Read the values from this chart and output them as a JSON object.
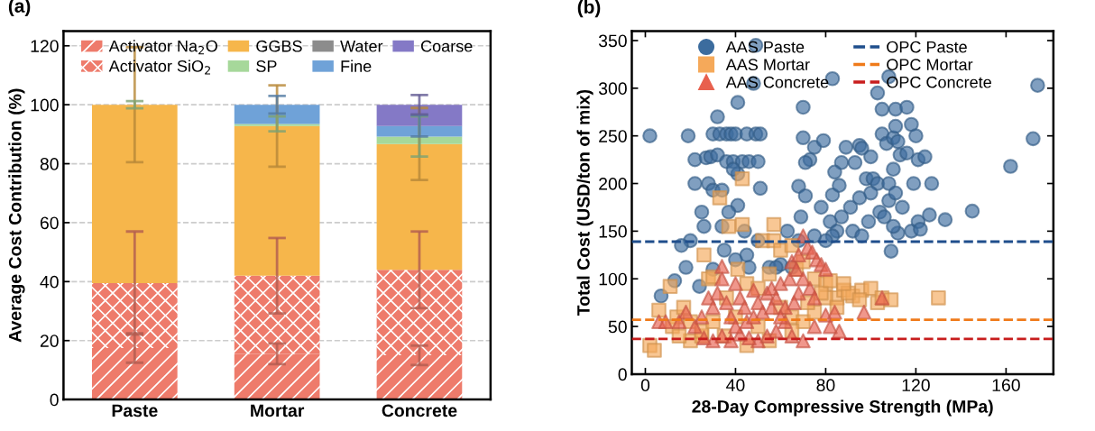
{
  "chart_data": [
    {
      "type": "bar",
      "title": "(a)",
      "ylabel": "Average Cost Contribution (%)",
      "categories": [
        "Paste",
        "Mortar",
        "Concrete"
      ],
      "stacked": true,
      "ylim": [
        0,
        125
      ],
      "yticks": [
        0,
        20,
        40,
        60,
        80,
        100,
        120
      ],
      "grid": "y",
      "legend": "top",
      "series": [
        {
          "name": "Activator Na$_{2}$O",
          "color": "#ee7b6b",
          "values": [
            17.5,
            15.5,
            15
          ],
          "errors": [
            5,
            3.5,
            3.3
          ]
        },
        {
          "name": "Activator SiO$_{2}$",
          "color": "#ee7b6b",
          "values": [
            22,
            26.5,
            29
          ],
          "errors": [
            17.5,
            12.8,
            13
          ]
        },
        {
          "name": "GGBS",
          "color": "#f6b64b",
          "values": [
            60.5,
            50.8,
            42.7
          ],
          "errors": [
            19.5,
            13.8,
            12.2
          ]
        },
        {
          "name": "SP",
          "color": "#a6d89a",
          "values": [
            0,
            0.7,
            2.5
          ],
          "errors": [
            1.2,
            2.5,
            6.8
          ]
        },
        {
          "name": "Water",
          "color": "#8c8c8c",
          "values": [
            0,
            0,
            0
          ]
        },
        {
          "name": "Fine",
          "color": "#6fa2d8",
          "values": [
            0,
            6.5,
            3.6
          ],
          "errors": [
            null,
            3,
            3.6
          ]
        },
        {
          "name": "Coarse",
          "color": "#8479c6",
          "values": [
            0,
            0,
            7.2
          ],
          "errors": [
            null,
            null,
            3.3
          ]
        }
      ]
    },
    {
      "type": "scatter",
      "title": "(b)",
      "xlabel": "28-Day Compressive Strength (MPa)",
      "ylabel": "Total Cost (USD/ton of mix)",
      "xlim": [
        -6,
        181
      ],
      "xticks": [
        0,
        40,
        80,
        120,
        160
      ],
      "ylim": [
        0,
        360
      ],
      "yticks": [
        0,
        50,
        100,
        150,
        200,
        250,
        300,
        350
      ],
      "grid": false,
      "legend": "top",
      "series": [
        {
          "name": "AAS Paste",
          "color": "#3c6c9e",
          "marker": "circle",
          "x": [
            2,
            19,
            32,
            30,
            33,
            36,
            38,
            40,
            45,
            49,
            51,
            22,
            27,
            29,
            32,
            36,
            39,
            43,
            46,
            50,
            22,
            28,
            30,
            34,
            41,
            25,
            37,
            26,
            34,
            44,
            50,
            20,
            16,
            13,
            7,
            18,
            24,
            30,
            40,
            46,
            55,
            60,
            63,
            68,
            45,
            35,
            41,
            39,
            51,
            49,
            41,
            48,
            70,
            83,
            103,
            108,
            174,
            70,
            75,
            79,
            73,
            71,
            68,
            71,
            69,
            78,
            83,
            86,
            89,
            87,
            84,
            93,
            95,
            96,
            82,
            85,
            87,
            91,
            95,
            98,
            101,
            103,
            100,
            99,
            104,
            106,
            108,
            100,
            105,
            107,
            110,
            112,
            105,
            111,
            116,
            111,
            118,
            120,
            121,
            124,
            113,
            116,
            110,
            108,
            111,
            114,
            112,
            110,
            118,
            121,
            122,
            126,
            133,
            145,
            162,
            172,
            109,
            127,
            119,
            92,
            96,
            83,
            80,
            75,
            65,
            58
          ],
          "values": [
            250,
            250,
            270,
            252,
            252,
            252,
            252,
            252,
            252,
            252,
            252,
            225,
            227,
            228,
            230,
            223,
            223,
            223,
            223,
            223,
            200,
            200,
            193,
            193,
            177,
            170,
            170,
            155,
            155,
            150,
            140,
            140,
            135,
            98,
            82,
            112,
            92,
            110,
            120,
            112,
            112,
            115,
            150,
            140,
            125,
            130,
            210,
            215,
            195,
            345,
            285,
            305,
            280,
            310,
            295,
            312,
            303,
            248,
            238,
            245,
            225,
            222,
            197,
            187,
            165,
            175,
            188,
            198,
            238,
            222,
            212,
            222,
            240,
            237,
            160,
            150,
            165,
            175,
            185,
            205,
            205,
            200,
            190,
            160,
            170,
            165,
            182,
            228,
            252,
            242,
            248,
            244,
            278,
            278,
            280,
            260,
            262,
            250,
            225,
            228,
            230,
            232,
            215,
            200,
            190,
            175,
            148,
            155,
            150,
            160,
            152,
            167,
            162,
            171,
            218,
            247,
            129,
            200,
            200,
            150,
            145,
            145,
            140,
            145,
            112,
            112
          ]
        },
        {
          "name": "AAS Mortar",
          "color": "#f5a95a",
          "marker": "square",
          "x": [
            2,
            4,
            6,
            11,
            14,
            17,
            20,
            25,
            26,
            28,
            30,
            33,
            37,
            43,
            41,
            36,
            45,
            50,
            52,
            55,
            57,
            57,
            60,
            65,
            67,
            70,
            75,
            80,
            85,
            88,
            92,
            96,
            100,
            103,
            105,
            109,
            130,
            43,
            80,
            60,
            65,
            70,
            75,
            85,
            90,
            95,
            12,
            15,
            20,
            25,
            30,
            35,
            45,
            55,
            40,
            50,
            65,
            72,
            78,
            82,
            88
          ],
          "values": [
            30,
            25,
            67,
            92,
            60,
            70,
            35,
            40,
            125,
            100,
            102,
            185,
            155,
            157,
            110,
            80,
            95,
            90,
            140,
            105,
            140,
            157,
            130,
            135,
            110,
            118,
            100,
            95,
            80,
            88,
            82,
            88,
            90,
            75,
            80,
            78,
            80,
            205,
            80,
            70,
            60,
            55,
            65,
            70,
            85,
            78,
            50,
            40,
            55,
            45,
            55,
            40,
            30,
            35,
            60,
            50,
            45,
            75,
            85,
            98,
            95
          ]
        },
        {
          "name": "AAS Concrete",
          "color": "#e8604e",
          "marker": "triangle",
          "x": [
            6,
            9,
            15,
            18,
            22,
            25,
            28,
            30,
            32,
            34,
            34,
            36,
            38,
            40,
            42,
            44,
            45,
            48,
            50,
            52,
            54,
            56,
            58,
            60,
            62,
            64,
            65,
            67,
            68,
            70,
            72,
            74,
            76,
            78,
            80,
            70,
            73,
            75,
            68,
            66,
            62,
            58,
            54,
            50,
            46,
            42,
            38,
            34,
            30,
            26,
            65,
            70,
            75,
            80,
            84,
            86,
            82,
            97,
            105,
            40,
            48,
            56,
            60
          ],
          "values": [
            55,
            55,
            55,
            65,
            50,
            60,
            80,
            70,
            85,
            100,
            113,
            75,
            60,
            95,
            80,
            70,
            55,
            88,
            75,
            65,
            85,
            90,
            80,
            95,
            70,
            100,
            118,
            110,
            125,
            145,
            133,
            128,
            120,
            115,
            110,
            100,
            90,
            80,
            85,
            75,
            55,
            45,
            40,
            35,
            38,
            42,
            35,
            40,
            35,
            38,
            40,
            35,
            50,
            62,
            65,
            45,
            50,
            65,
            80,
            50,
            60,
            70,
            60
          ]
        }
      ],
      "ref_lines": [
        {
          "axis": "y",
          "value": 139,
          "label": "OPC Paste",
          "color": "#1f4e8c",
          "line_style": "dashed"
        },
        {
          "axis": "y",
          "value": 57,
          "label": "OPC Mortar",
          "color": "#ef7a1a",
          "line_style": "dashed"
        },
        {
          "axis": "y",
          "value": 37,
          "label": "OPC Concrete",
          "color": "#c81d1d",
          "line_style": "dashed"
        }
      ]
    }
  ]
}
